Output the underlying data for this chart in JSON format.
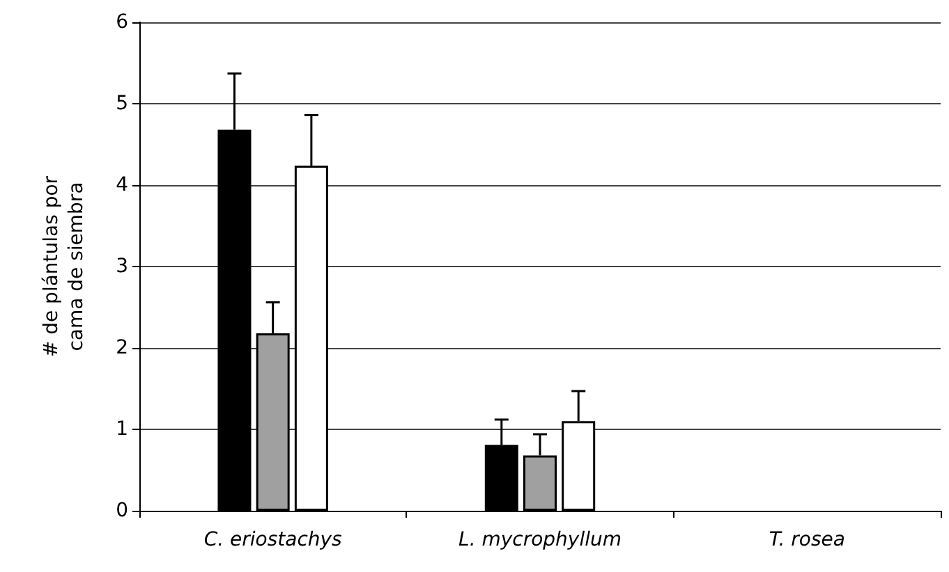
{
  "chart_data": {
    "type": "bar",
    "ylabel": "# de plántulas por\ncama de siembra",
    "categories": [
      "C. eriostachys",
      "L. mycrophyllum",
      "T. rosea"
    ],
    "series": [
      {
        "color": "#000000",
        "values": [
          4.68,
          0.81,
          0
        ],
        "errors": [
          [
            4.68,
            5.37
          ],
          [
            0.81,
            1.12
          ],
          null
        ]
      },
      {
        "color": "#a0a0a0",
        "values": [
          2.18,
          0.68,
          0
        ],
        "errors": [
          [
            2.18,
            2.56
          ],
          [
            0.68,
            0.94
          ],
          null
        ]
      },
      {
        "color": "#ffffff",
        "values": [
          4.24,
          1.1,
          0
        ],
        "errors": [
          [
            4.24,
            4.86
          ],
          [
            1.1,
            1.47
          ],
          null
        ]
      }
    ],
    "ylim": [
      0,
      6
    ],
    "yticks": [
      0,
      1,
      2,
      3,
      4,
      5,
      6
    ],
    "grid": "y"
  }
}
